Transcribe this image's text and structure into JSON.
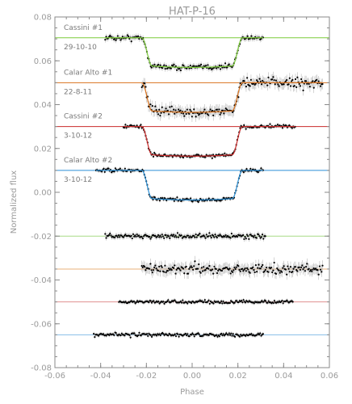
{
  "chart_data": {
    "type": "scatter",
    "title": "HAT-P-16",
    "xlabel": "Phase",
    "ylabel": "Normalized flux",
    "xlim": [
      -0.06,
      0.06
    ],
    "ylim": [
      -0.08,
      0.08
    ],
    "xticks": [
      "-0.06",
      "-0.04",
      "-0.02",
      "0.00",
      "0.02",
      "0.04",
      "0.06"
    ],
    "yticks": [
      "-0.08",
      "-0.06",
      "-0.04",
      "-0.02",
      "0.00",
      "0.02",
      "0.04",
      "0.06",
      "0.08"
    ],
    "grid": false,
    "transit": {
      "ingress_start": -0.022,
      "ingress_end": -0.0175,
      "egress_start": 0.0175,
      "egress_end": 0.022,
      "depth": 0.0135
    },
    "lightcurves": [
      {
        "label": "Cassini #1",
        "date": "29-10-10",
        "color": "#7ccc3a",
        "offset": 0.0705,
        "x_start": -0.038,
        "x_end": 0.031,
        "scatter": 0.0012
      },
      {
        "label": "Calar Alto #1",
        "date": "22-8-11",
        "color": "#d9731f",
        "offset": 0.05,
        "x_start": -0.022,
        "x_end": 0.057,
        "scatter": 0.0022
      },
      {
        "label": "Cassini #2",
        "date": "3-10-12",
        "color": "#c92a2a",
        "offset": 0.03,
        "x_start": -0.03,
        "x_end": 0.045,
        "scatter": 0.0008
      },
      {
        "label": "Calar Alto #2",
        "date": "3-10-12",
        "color": "#2a8fd6",
        "offset": 0.01,
        "x_start": -0.042,
        "x_end": 0.031,
        "scatter": 0.0008
      }
    ],
    "residuals": [
      {
        "color": "#a8dc86",
        "offset": -0.02,
        "x_start": -0.038,
        "x_end": 0.032,
        "scatter": 0.0011
      },
      {
        "color": "#e8b07a",
        "offset": -0.035,
        "x_start": -0.022,
        "x_end": 0.057,
        "scatter": 0.0022
      },
      {
        "color": "#e09090",
        "offset": -0.05,
        "x_start": -0.032,
        "x_end": 0.044,
        "scatter": 0.0008
      },
      {
        "color": "#86bde8",
        "offset": -0.065,
        "x_start": -0.043,
        "x_end": 0.031,
        "scatter": 0.0008
      }
    ]
  }
}
